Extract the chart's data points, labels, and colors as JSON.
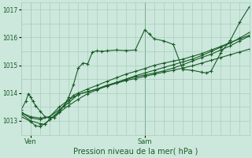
{
  "xlabel": "Pression niveau de la mer( hPa )",
  "bg_color": "#cce8dc",
  "grid_color": "#aaccbb",
  "line_color": "#1a5c28",
  "ylim": [
    1012.6,
    1017.25
  ],
  "xlim": [
    0,
    48
  ],
  "ven_x": 2,
  "sam_x": 26,
  "tick_label_color": "#1a5c28",
  "yticks": [
    1013,
    1014,
    1015,
    1016,
    1017
  ],
  "xtick_positions": [
    2,
    26
  ],
  "xtick_labels": [
    "Ven",
    "Sam"
  ],
  "series": [
    [
      0,
      1013.3,
      2,
      1013.15,
      4,
      1013.1,
      6,
      1013.15,
      8,
      1013.5,
      10,
      1013.75,
      12,
      1013.95,
      14,
      1014.05,
      16,
      1014.15,
      18,
      1014.25,
      20,
      1014.35,
      22,
      1014.45,
      24,
      1014.52,
      26,
      1014.6,
      28,
      1014.68,
      30,
      1014.75,
      32,
      1014.82,
      34,
      1014.9,
      36,
      1014.98,
      38,
      1015.08,
      40,
      1015.18,
      42,
      1015.28,
      44,
      1015.38,
      46,
      1015.48,
      48,
      1015.58
    ],
    [
      0,
      1013.25,
      2,
      1013.0,
      4,
      1012.9,
      5,
      1012.88,
      6,
      1013.05,
      8,
      1013.35,
      9,
      1013.55,
      10,
      1013.85,
      11,
      1014.3,
      12,
      1014.9,
      13,
      1015.08,
      14,
      1015.05,
      15,
      1015.48,
      16,
      1015.52,
      17,
      1015.5,
      18,
      1015.52,
      20,
      1015.55,
      22,
      1015.53,
      24,
      1015.55,
      26,
      1016.28,
      27,
      1016.12,
      28,
      1015.95,
      30,
      1015.88,
      32,
      1015.75,
      34,
      1014.85,
      36,
      1014.82,
      38,
      1014.75,
      39,
      1014.72,
      40,
      1014.8,
      42,
      1015.45,
      44,
      1015.9,
      46,
      1016.55,
      48,
      1017.1
    ],
    [
      0,
      1013.3,
      2,
      1013.1,
      4,
      1013.05,
      6,
      1013.15,
      8,
      1013.4,
      10,
      1013.65,
      12,
      1013.95,
      14,
      1014.05,
      16,
      1014.15,
      18,
      1014.28,
      20,
      1014.38,
      22,
      1014.48,
      24,
      1014.58,
      26,
      1014.65,
      28,
      1014.72,
      30,
      1014.8,
      32,
      1014.9,
      34,
      1015.02,
      36,
      1015.15,
      38,
      1015.28,
      40,
      1015.4,
      42,
      1015.55,
      44,
      1015.7,
      46,
      1015.88,
      48,
      1016.05
    ],
    [
      0,
      1013.4,
      1,
      1013.72,
      1.5,
      1013.98,
      2,
      1013.85,
      2.5,
      1013.7,
      3,
      1013.55,
      4,
      1013.35,
      5,
      1013.15,
      6,
      1013.1,
      7,
      1013.12,
      8,
      1013.3,
      9,
      1013.55,
      10,
      1013.75,
      11,
      1013.92,
      12,
      1014.0,
      14,
      1014.15,
      16,
      1014.28,
      18,
      1014.42,
      20,
      1014.55,
      22,
      1014.68,
      24,
      1014.78,
      26,
      1014.88,
      28,
      1015.0,
      30,
      1015.08,
      32,
      1015.15,
      34,
      1015.22,
      36,
      1015.32,
      38,
      1015.42,
      40,
      1015.55,
      42,
      1015.68,
      44,
      1015.82,
      46,
      1015.95,
      48,
      1016.08
    ],
    [
      0,
      1013.15,
      2,
      1012.98,
      3,
      1012.82,
      4,
      1012.8,
      5,
      1012.9,
      6,
      1013.05,
      8,
      1013.3,
      10,
      1013.55,
      12,
      1013.78,
      14,
      1013.98,
      16,
      1014.12,
      18,
      1014.25,
      20,
      1014.38,
      22,
      1014.5,
      24,
      1014.62,
      26,
      1014.72,
      28,
      1014.82,
      30,
      1014.92,
      32,
      1015.02,
      34,
      1015.12,
      36,
      1015.22,
      38,
      1015.35,
      40,
      1015.5,
      42,
      1015.65,
      44,
      1015.8,
      46,
      1015.98,
      48,
      1016.18
    ]
  ]
}
